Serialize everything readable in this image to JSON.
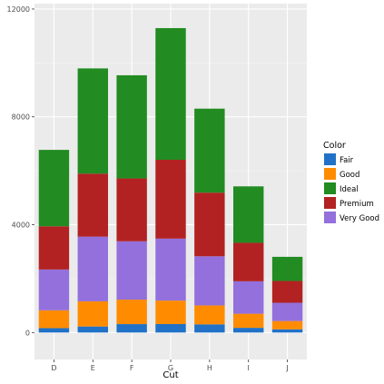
{
  "chart_data": {
    "type": "bar",
    "stacked": true,
    "categories": [
      "D",
      "E",
      "F",
      "G",
      "H",
      "I",
      "J"
    ],
    "xlabel": "Cut",
    "ylabel": "",
    "ylim": [
      -1000,
      12200
    ],
    "yticks": [
      0,
      4000,
      8000,
      12000
    ],
    "grid": true,
    "legend": {
      "title": "Color",
      "placement": "right"
    },
    "series": [
      {
        "name": "Fair",
        "color": "#2171c7",
        "values": [
          163,
          224,
          312,
          314,
          303,
          175,
          119
        ]
      },
      {
        "name": "Good",
        "color": "#ff8c00",
        "values": [
          662,
          933,
          909,
          871,
          702,
          522,
          307
        ]
      },
      {
        "name": "Ideal",
        "color": "#228b22",
        "values": [
          2834,
          3903,
          3826,
          4884,
          3115,
          2093,
          896
        ]
      },
      {
        "name": "Premium",
        "color": "#b22222",
        "values": [
          1603,
          2337,
          2331,
          2924,
          2360,
          1428,
          808
        ]
      },
      {
        "name": "Very Good",
        "color": "#9370db",
        "values": [
          1513,
          2400,
          2164,
          2299,
          1824,
          1204,
          678
        ]
      }
    ],
    "stack_order_bottom_to_top": [
      "Fair",
      "Good",
      "Very Good",
      "Premium",
      "Ideal"
    ]
  }
}
